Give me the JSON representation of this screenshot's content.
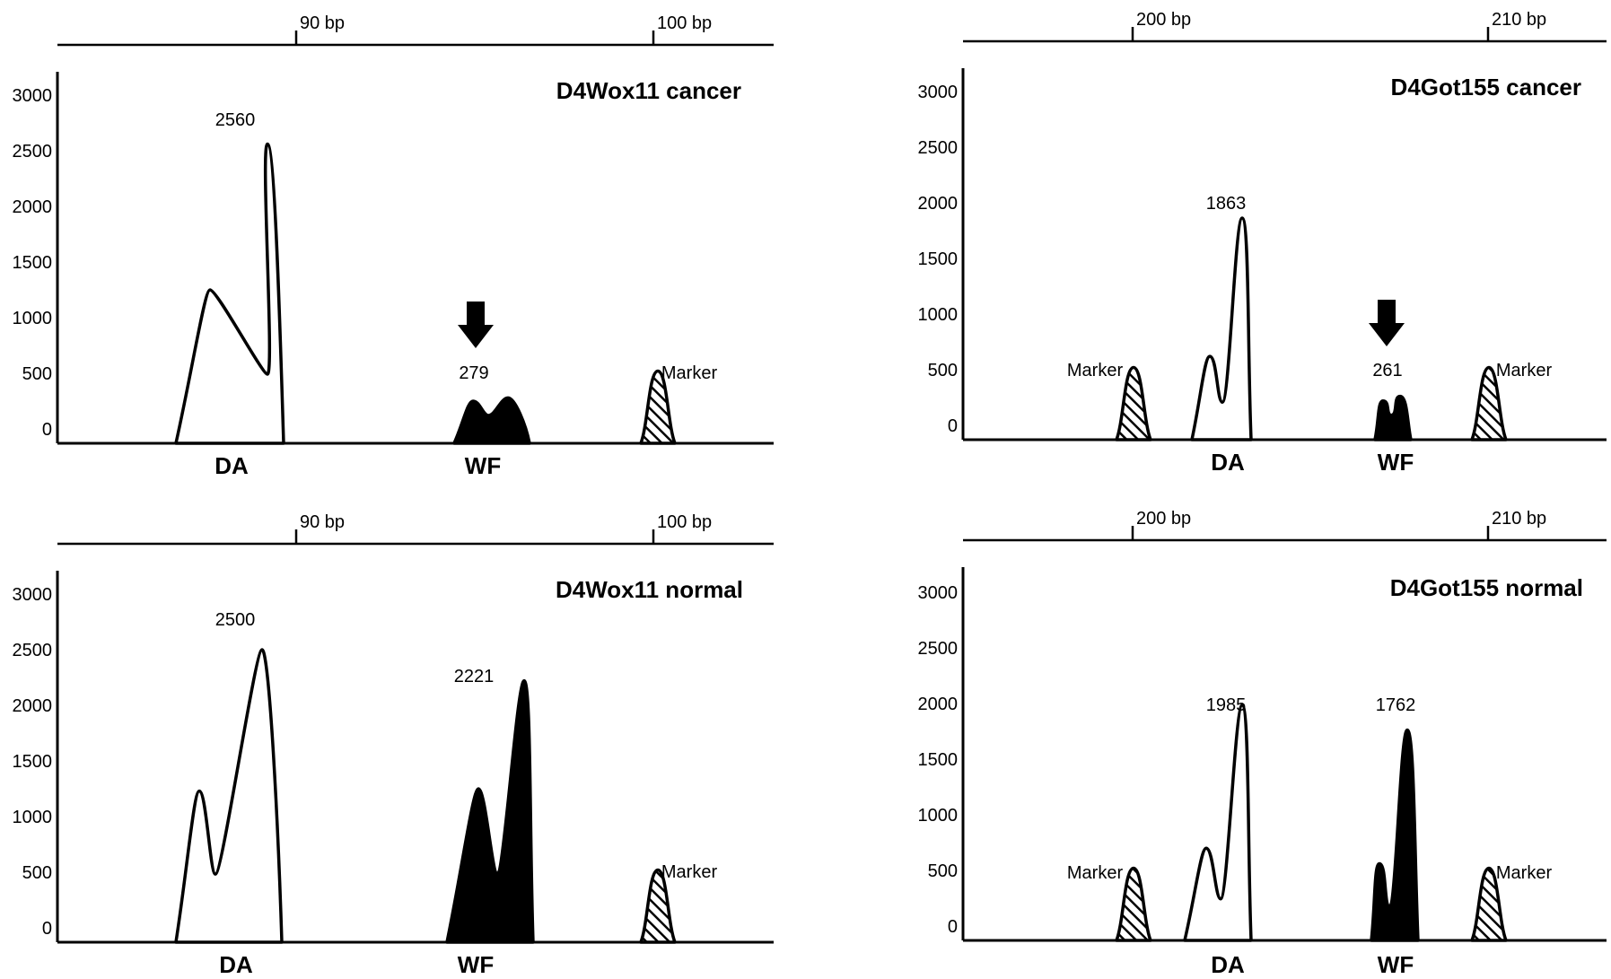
{
  "chart_data": [
    {
      "type": "electropherogram",
      "title": "D4Wox11 cancer",
      "ytick_labels": [
        "3000",
        "2500",
        "2000",
        "1500",
        "1000",
        "500",
        "0"
      ],
      "top_ticks": [
        "90 bp",
        "100 bp"
      ],
      "peak_labels": [
        "2560",
        "279"
      ],
      "marker_label": "Marker",
      "categories": [
        "DA",
        "WF"
      ],
      "ylim": [
        0,
        3000
      ],
      "peaks": [
        {
          "name": "DA",
          "fill": "white",
          "values": [
            1250,
            2560
          ]
        },
        {
          "name": "WF",
          "fill": "black",
          "values": [
            250,
            279
          ]
        },
        {
          "name": "Marker",
          "fill": "hatch",
          "values": [
            520
          ]
        }
      ],
      "arrow": true
    },
    {
      "type": "electropherogram",
      "title": "D4Got155 cancer",
      "ytick_labels": [
        "3000",
        "2500",
        "2000",
        "1500",
        "1000",
        "500",
        "0"
      ],
      "top_ticks": [
        "200 bp",
        "210 bp"
      ],
      "peak_labels": [
        "1863",
        "261"
      ],
      "marker_label": "Marker",
      "categories": [
        "DA",
        "WF"
      ],
      "ylim": [
        0,
        3000
      ],
      "peaks": [
        {
          "name": "Marker",
          "fill": "hatch",
          "values": [
            520
          ]
        },
        {
          "name": "DA",
          "fill": "white",
          "values": [
            620,
            1863
          ]
        },
        {
          "name": "WF",
          "fill": "black",
          "values": [
            220,
            261
          ]
        },
        {
          "name": "Marker",
          "fill": "hatch",
          "values": [
            520
          ]
        }
      ],
      "arrow": true
    },
    {
      "type": "electropherogram",
      "title": "D4Wox11 normal",
      "ytick_labels": [
        "3000",
        "2500",
        "2000",
        "1500",
        "1000",
        "500",
        "0"
      ],
      "top_ticks": [
        "90 bp",
        "100 bp"
      ],
      "peak_labels": [
        "2500",
        "2221"
      ],
      "marker_label": "Marker",
      "categories": [
        "DA",
        "WF"
      ],
      "ylim": [
        0,
        3000
      ],
      "peaks": [
        {
          "name": "DA",
          "fill": "white",
          "values": [
            1230,
            2500
          ]
        },
        {
          "name": "WF",
          "fill": "black",
          "values": [
            1250,
            2221
          ]
        },
        {
          "name": "Marker",
          "fill": "hatch",
          "values": [
            520
          ]
        }
      ],
      "arrow": false
    },
    {
      "type": "electropherogram",
      "title": "D4Got155 normal",
      "ytick_labels": [
        "3000",
        "2500",
        "2000",
        "1500",
        "1000",
        "500",
        "0"
      ],
      "top_ticks": [
        "200 bp",
        "210 bp"
      ],
      "peak_labels": [
        "1985",
        "1762"
      ],
      "marker_label": "Marker",
      "categories": [
        "DA",
        "WF"
      ],
      "ylim": [
        0,
        3000
      ],
      "peaks": [
        {
          "name": "Marker",
          "fill": "hatch",
          "values": [
            520
          ]
        },
        {
          "name": "DA",
          "fill": "white",
          "values": [
            700,
            1985
          ]
        },
        {
          "name": "WF",
          "fill": "black",
          "values": [
            560,
            1762
          ]
        },
        {
          "name": "Marker",
          "fill": "hatch",
          "values": [
            520
          ]
        }
      ],
      "arrow": false
    }
  ]
}
